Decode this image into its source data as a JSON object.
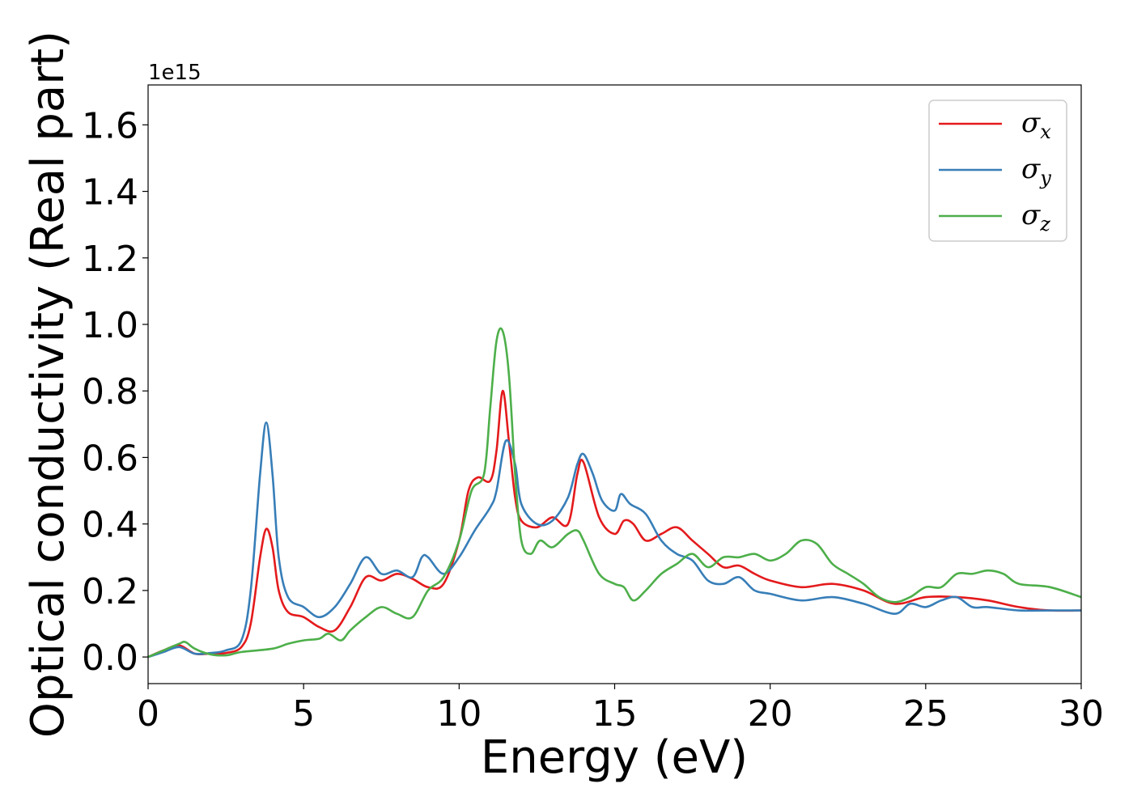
{
  "chart_data": {
    "type": "line",
    "xlabel": "Energy (eV)",
    "ylabel": "Optical conductivity (Real part)",
    "y_offset_label": "1e15",
    "xlim": [
      0,
      30
    ],
    "ylim": [
      -0.08,
      1.72
    ],
    "xticks": [
      0,
      5,
      10,
      15,
      20,
      25,
      30
    ],
    "xtick_labels": [
      "0",
      "5",
      "10",
      "15",
      "20",
      "25",
      "30"
    ],
    "yticks": [
      0.0,
      0.2,
      0.4,
      0.6,
      0.8,
      1.0,
      1.2,
      1.4,
      1.6
    ],
    "ytick_labels": [
      "0.0",
      "0.2",
      "0.4",
      "0.6",
      "0.8",
      "1.0",
      "1.2",
      "1.4",
      "1.6"
    ],
    "grid": false,
    "legend_position": "top-right",
    "series": [
      {
        "name": "σx",
        "legend_base": "σ",
        "legend_sub": "x",
        "color": "#e41a1c",
        "x": [
          0,
          0.5,
          1.0,
          1.5,
          2.0,
          2.5,
          3.0,
          3.3,
          3.6,
          3.8,
          4.0,
          4.2,
          4.5,
          5.0,
          5.5,
          6.0,
          6.5,
          7.0,
          7.5,
          8.0,
          8.5,
          9.0,
          9.5,
          10.0,
          10.3,
          10.6,
          11.0,
          11.2,
          11.4,
          11.6,
          11.8,
          12.0,
          12.5,
          13.0,
          13.5,
          13.8,
          14.0,
          14.5,
          15.0,
          15.3,
          15.6,
          16.0,
          16.5,
          17.0,
          17.5,
          18.0,
          18.5,
          19.0,
          19.5,
          20.0,
          21.0,
          22.0,
          23.0,
          24.0,
          25.0,
          26.0,
          27.0,
          28.0,
          29.0,
          30.0
        ],
        "y": [
          0.0,
          0.02,
          0.035,
          0.01,
          0.01,
          0.012,
          0.03,
          0.1,
          0.3,
          0.385,
          0.33,
          0.2,
          0.135,
          0.12,
          0.09,
          0.08,
          0.15,
          0.24,
          0.23,
          0.25,
          0.235,
          0.21,
          0.22,
          0.35,
          0.5,
          0.54,
          0.53,
          0.62,
          0.8,
          0.65,
          0.48,
          0.41,
          0.39,
          0.42,
          0.4,
          0.55,
          0.585,
          0.42,
          0.37,
          0.41,
          0.4,
          0.35,
          0.37,
          0.39,
          0.35,
          0.31,
          0.27,
          0.275,
          0.25,
          0.23,
          0.21,
          0.22,
          0.2,
          0.16,
          0.18,
          0.18,
          0.17,
          0.15,
          0.14,
          0.14
        ]
      },
      {
        "name": "σy",
        "legend_base": "σ",
        "legend_sub": "y",
        "color": "#377eb8",
        "x": [
          0,
          0.5,
          1.0,
          1.5,
          2.0,
          2.5,
          3.0,
          3.3,
          3.6,
          3.8,
          4.0,
          4.2,
          4.5,
          5.0,
          5.5,
          6.0,
          6.5,
          7.0,
          7.5,
          8.0,
          8.5,
          8.8,
          9.0,
          9.5,
          10.0,
          10.5,
          11.0,
          11.2,
          11.5,
          11.8,
          12.0,
          12.5,
          13.0,
          13.5,
          13.8,
          14.0,
          14.3,
          14.6,
          15.0,
          15.2,
          15.5,
          16.0,
          16.5,
          17.0,
          17.5,
          18.0,
          18.5,
          19.0,
          19.5,
          20.0,
          21.0,
          22.0,
          23.0,
          24.0,
          24.5,
          25.0,
          25.5,
          26.0,
          26.5,
          27.0,
          28.0,
          29.0,
          30.0
        ],
        "y": [
          0.0,
          0.015,
          0.03,
          0.01,
          0.012,
          0.02,
          0.05,
          0.2,
          0.55,
          0.705,
          0.55,
          0.3,
          0.18,
          0.15,
          0.12,
          0.15,
          0.22,
          0.3,
          0.25,
          0.26,
          0.24,
          0.3,
          0.3,
          0.25,
          0.3,
          0.38,
          0.45,
          0.5,
          0.65,
          0.58,
          0.46,
          0.4,
          0.41,
          0.48,
          0.58,
          0.61,
          0.55,
          0.47,
          0.44,
          0.49,
          0.46,
          0.43,
          0.35,
          0.31,
          0.29,
          0.23,
          0.22,
          0.24,
          0.2,
          0.19,
          0.17,
          0.18,
          0.16,
          0.13,
          0.16,
          0.15,
          0.17,
          0.18,
          0.15,
          0.15,
          0.14,
          0.14,
          0.14
        ]
      },
      {
        "name": "σz",
        "legend_base": "σ",
        "legend_sub": "z",
        "color": "#4daf4a",
        "x": [
          0,
          0.5,
          1.0,
          1.2,
          1.5,
          2.0,
          2.5,
          3.0,
          4.0,
          4.5,
          5.0,
          5.5,
          5.8,
          6.2,
          6.5,
          7.0,
          7.5,
          8.0,
          8.5,
          9.0,
          9.5,
          10.0,
          10.4,
          10.8,
          11.0,
          11.2,
          11.4,
          11.6,
          11.8,
          12.0,
          12.3,
          12.6,
          13.0,
          13.5,
          13.8,
          14.0,
          14.5,
          15.0,
          15.3,
          15.6,
          16.0,
          16.5,
          17.0,
          17.5,
          18.0,
          18.5,
          19.0,
          19.5,
          20.0,
          20.5,
          21.0,
          21.5,
          22.0,
          22.5,
          23.0,
          23.5,
          24.0,
          24.5,
          25.0,
          25.5,
          26.0,
          26.5,
          27.0,
          27.5,
          28.0,
          29.0,
          30.0
        ],
        "y": [
          0.0,
          0.02,
          0.04,
          0.045,
          0.025,
          0.008,
          0.005,
          0.015,
          0.025,
          0.04,
          0.05,
          0.055,
          0.07,
          0.05,
          0.08,
          0.12,
          0.15,
          0.13,
          0.12,
          0.2,
          0.24,
          0.35,
          0.5,
          0.55,
          0.75,
          0.95,
          0.98,
          0.85,
          0.55,
          0.35,
          0.31,
          0.35,
          0.33,
          0.37,
          0.38,
          0.35,
          0.25,
          0.22,
          0.21,
          0.17,
          0.2,
          0.25,
          0.28,
          0.31,
          0.27,
          0.3,
          0.3,
          0.31,
          0.29,
          0.31,
          0.35,
          0.34,
          0.28,
          0.25,
          0.22,
          0.18,
          0.165,
          0.18,
          0.21,
          0.21,
          0.25,
          0.25,
          0.26,
          0.25,
          0.22,
          0.21,
          0.18
        ]
      }
    ]
  }
}
